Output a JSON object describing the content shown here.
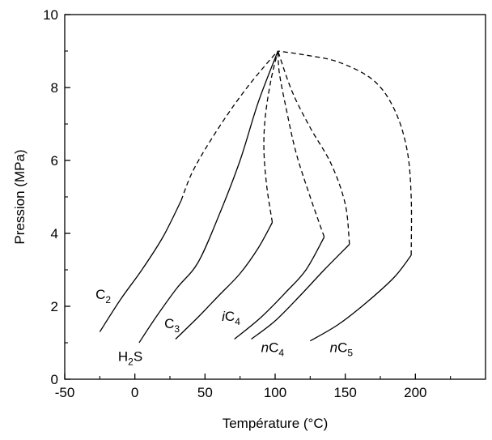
{
  "chart_data": {
    "type": "line",
    "xlabel": "Température (°C)",
    "ylabel": "Pression (MPa)",
    "xlim": [
      -50,
      250
    ],
    "ylim": [
      0,
      10
    ],
    "x_ticks": [
      -50,
      0,
      50,
      100,
      150,
      200
    ],
    "y_ticks": [
      0,
      2,
      4,
      6,
      8,
      10
    ],
    "x_tick_labels": [
      "-50",
      "0",
      "50",
      "100",
      "150",
      "200"
    ],
    "y_tick_labels": [
      "0",
      "2",
      "4",
      "6",
      "8",
      "10"
    ],
    "grid": false,
    "critical_point": [
      102,
      9.0
    ],
    "series": [
      {
        "name": "C₂",
        "solid": [
          [
            -25,
            1.3
          ],
          [
            -10,
            2.2
          ],
          [
            5,
            3.0
          ],
          [
            20,
            3.9
          ],
          [
            33,
            4.9
          ]
        ],
        "dashed": [
          [
            33,
            4.9
          ],
          [
            40,
            5.6
          ],
          [
            50,
            6.3
          ],
          [
            65,
            7.2
          ],
          [
            80,
            8.0
          ],
          [
            95,
            8.7
          ],
          [
            102,
            9.0
          ]
        ]
      },
      {
        "name": "H₂S",
        "solid": [
          [
            3,
            1.0
          ],
          [
            15,
            1.7
          ],
          [
            30,
            2.5
          ],
          [
            45,
            3.2
          ],
          [
            60,
            4.5
          ],
          [
            75,
            6.0
          ],
          [
            88,
            7.6
          ],
          [
            102,
            9.0
          ]
        ],
        "dashed": []
      },
      {
        "name": "C₃",
        "solid": [
          [
            29,
            1.1
          ],
          [
            45,
            1.7
          ],
          [
            60,
            2.3
          ],
          [
            75,
            2.9
          ],
          [
            88,
            3.6
          ],
          [
            98,
            4.3
          ]
        ],
        "dashed": [
          [
            98,
            4.3
          ],
          [
            94,
            5.3
          ],
          [
            92,
            6.3
          ],
          [
            93,
            7.2
          ],
          [
            97,
            8.2
          ],
          [
            102,
            9.0
          ]
        ]
      },
      {
        "name": "iC₄",
        "solid": [
          [
            71,
            1.1
          ],
          [
            90,
            1.7
          ],
          [
            108,
            2.4
          ],
          [
            122,
            3.0
          ],
          [
            135,
            3.9
          ]
        ],
        "dashed": [
          [
            135,
            3.9
          ],
          [
            125,
            5.0
          ],
          [
            115,
            6.2
          ],
          [
            108,
            7.4
          ],
          [
            103,
            8.4
          ],
          [
            102,
            9.0
          ]
        ]
      },
      {
        "name": "nC₄",
        "solid": [
          [
            83,
            1.1
          ],
          [
            100,
            1.6
          ],
          [
            118,
            2.3
          ],
          [
            135,
            3.0
          ],
          [
            153,
            3.7
          ]
        ],
        "dashed": [
          [
            153,
            3.7
          ],
          [
            150,
            4.8
          ],
          [
            140,
            5.9
          ],
          [
            125,
            6.9
          ],
          [
            112,
            7.9
          ],
          [
            102,
            9.0
          ]
        ]
      },
      {
        "name": "nC₅",
        "solid": [
          [
            125,
            1.05
          ],
          [
            145,
            1.5
          ],
          [
            165,
            2.1
          ],
          [
            185,
            2.8
          ],
          [
            197,
            3.4
          ]
        ],
        "dashed": [
          [
            197,
            3.4
          ],
          [
            197,
            5.0
          ],
          [
            194,
            6.3
          ],
          [
            185,
            7.4
          ],
          [
            170,
            8.2
          ],
          [
            145,
            8.7
          ],
          [
            120,
            8.9
          ],
          [
            102,
            9.0
          ]
        ]
      }
    ],
    "labels": [
      {
        "main": "C",
        "sub": "2",
        "prefix": "",
        "at": [
          -28,
          2.2
        ]
      },
      {
        "main": "H",
        "sub": "2",
        "suffix": "S",
        "prefix": "",
        "at": [
          -12,
          0.5
        ]
      },
      {
        "main": "C",
        "sub": "3",
        "prefix": "",
        "at": [
          21,
          1.4
        ]
      },
      {
        "main": "C",
        "sub": "4",
        "prefix": "i",
        "at": [
          62,
          1.6
        ]
      },
      {
        "main": "C",
        "sub": "4",
        "prefix": "n",
        "at": [
          90,
          0.75
        ]
      },
      {
        "main": "C",
        "sub": "5",
        "prefix": "n",
        "at": [
          139,
          0.75
        ]
      }
    ]
  }
}
